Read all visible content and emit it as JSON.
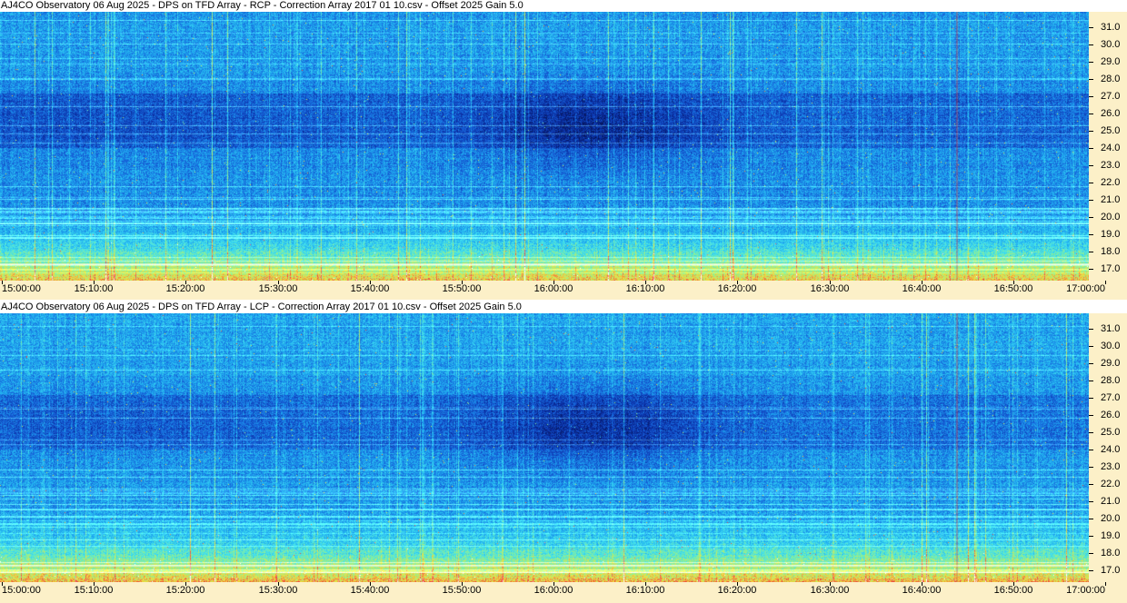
{
  "panels": [
    {
      "title": "AJ4CO Observatory 06 Aug 2025  -  DPS on TFD Array  -  RCP  -  Correction Array 2017 01 10.csv  -  Offset 2025  Gain 5.0",
      "polarization": "RCP"
    },
    {
      "title": "AJ4CO Observatory 06 Aug 2025  -  DPS on TFD Array  -  LCP  -  Correction Array 2017 01 10.csv  -  Offset 2025  Gain 5.0",
      "polarization": "LCP"
    }
  ],
  "chart_data": {
    "type": "heatmap",
    "x_tick_labels": [
      "15:00:00",
      "15:10:00",
      "15:20:00",
      "15:30:00",
      "15:40:00",
      "15:50:00",
      "16:00:00",
      "16:10:00",
      "16:20:00",
      "16:30:00",
      "16:40:00",
      "16:50:00",
      "17:00:00"
    ],
    "y_tick_labels": [
      "31.0",
      "30.0",
      "29.0",
      "28.0",
      "27.0",
      "26.0",
      "25.0",
      "24.0",
      "23.0",
      "22.0",
      "21.0",
      "20.0",
      "19.0",
      "18.0",
      "17.0"
    ],
    "x_range": [
      "15:00:00",
      "17:00:00"
    ],
    "y_range_mhz": [
      16.3,
      31.9
    ],
    "colormap": [
      "#041048",
      "#0a2ca0",
      "#1660d8",
      "#1ea8f0",
      "#40e0f0",
      "#90f090",
      "#f0e040",
      "#f04040",
      "#ffffff"
    ]
  }
}
